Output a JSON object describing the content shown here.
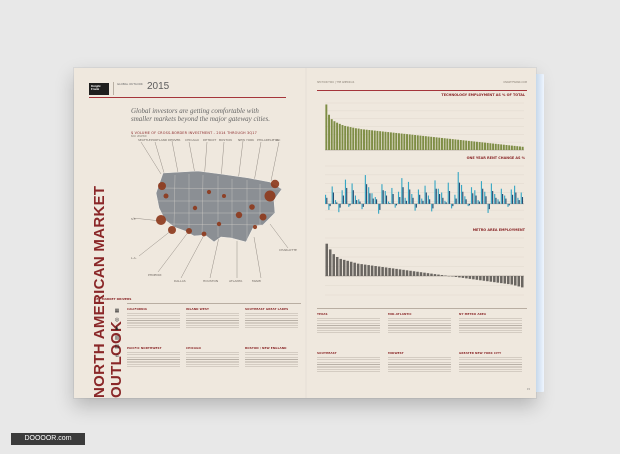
{
  "document": {
    "brand": "Knight Frank",
    "outlook_label": "GLOBAL OUTLOOK",
    "year": "2015",
    "title": "NORTH AMERICAN MARKET OUTLOOK",
    "quote": "Global investors are getting comfortable with smaller markets beyond the major gateway cities.",
    "map_caption": "$ VOLUME OF CROSS-BORDER INVESTMENT - 2014 THROUGH 3Q17",
    "map_sub": "BAR LEGEND",
    "drivers_title": "KEY MARKET DRIVERS",
    "right_header_left": "SECTION TWO | THE AMERICAS",
    "right_header_right": "KNIGHTFRANK.COM",
    "page_left": "14",
    "page_right": "15",
    "watermark": "DOOOOR.com"
  },
  "regions": [
    {
      "name": "CALIFORNIA"
    },
    {
      "name": "INLAND WEST"
    },
    {
      "name": "SOUTHEAST GREAT LAKES"
    },
    {
      "name": "PACIFIC NORTHWEST"
    },
    {
      "name": "CHICAGO"
    },
    {
      "name": "BOSTON / NEW ENGLAND"
    },
    {
      "name": "TEXAS"
    },
    {
      "name": "MID-ATLANTIC"
    },
    {
      "name": "NY METRO AREA"
    },
    {
      "name": "SOUTHEAST"
    },
    {
      "name": "MIDWEST"
    },
    {
      "name": "GREATER NEW YORK CITY"
    }
  ],
  "chart_data": [
    {
      "type": "bar",
      "title": "TECHNOLOGY EMPLOYMENT AS % OF TOTAL",
      "series": [
        {
          "values": [
            15.5,
            12,
            10.5,
            9.8,
            9.3,
            8.9,
            8.5,
            8.2,
            8,
            7.8,
            7.6,
            7.4,
            7.3,
            7.1,
            7,
            6.9,
            6.8,
            6.7,
            6.6,
            6.5,
            6.4,
            6.3,
            6.2,
            6.1,
            6,
            5.9,
            5.8,
            5.7,
            5.6,
            5.5,
            5.4,
            5.3,
            5.2,
            5.1,
            5,
            4.9,
            4.8,
            4.7,
            4.6,
            4.5,
            4.4,
            4.3,
            4.2,
            4.1,
            4,
            3.9,
            3.8,
            3.7,
            3.6,
            3.5,
            3.4,
            3.3,
            3.2,
            3.1,
            3,
            2.9,
            2.8,
            2.7,
            2.6,
            2.5,
            2.4,
            2.3,
            2.2,
            2.1,
            2,
            1.9,
            1.8,
            1.7,
            1.6,
            1.5,
            1.4,
            1.3,
            1.2,
            1.1
          ]
        }
      ],
      "ylim": [
        0,
        16
      ]
    },
    {
      "type": "bar",
      "title": "ONE YEAR RENT CHANGE AS %",
      "series": [
        {
          "values": [
            1.2,
            -0.8,
            2.3,
            0.5,
            -1.1,
            1.8,
            3.2,
            -0.4,
            2.7,
            1.1,
            0.6,
            -0.7,
            3.8,
            2.2,
            1.4,
            0.9,
            -1.3,
            2.6,
            1.7,
            0.3,
            2.1,
            -0.5,
            1.6,
            3.4,
            0.8,
            2.9,
            1.3,
            -0.9,
            1.9,
            0.7,
            2.4,
            1.1,
            -1.0,
            3.1,
            2.0,
            1.5,
            0.4,
            2.8,
            -0.6,
            1.2,
            4.2,
            2.5,
            1.0,
            -0.3,
            2.2,
            1.8,
            0.5,
            3.0,
            1.6,
            -1.2,
            2.7,
            1.3,
            0.6,
            2.0,
            1.1,
            -0.4,
            1.9,
            2.4,
            0.8,
            1.5
          ]
        },
        {
          "values": [
            0.8,
            -0.3,
            1.5,
            0.2,
            -0.5,
            1.1,
            2.1,
            -0.2,
            1.8,
            0.5,
            0.3,
            -0.4,
            2.6,
            1.4,
            0.7,
            0.6,
            -0.8,
            1.8,
            1.1,
            0.1,
            1.3,
            -0.2,
            0.9,
            2.2,
            0.4,
            1.9,
            0.8,
            -0.5,
            1.2,
            0.4,
            1.5,
            0.6,
            -0.6,
            2.0,
            1.3,
            0.8,
            0.2,
            1.7,
            -0.3,
            0.7,
            2.8,
            1.6,
            0.6,
            -0.2,
            1.4,
            1.1,
            0.3,
            2.0,
            1.0,
            -0.7,
            1.7,
            0.8,
            0.3,
            1.3,
            0.7,
            -0.2,
            1.2,
            1.5,
            0.5,
            0.9
          ]
        }
      ],
      "ylim": [
        -2,
        5
      ]
    },
    {
      "type": "bar",
      "title": "METRO AREA EMPLOYMENT",
      "series": [
        {
          "values": [
            3.4,
            2.8,
            2.3,
            2.0,
            1.8,
            1.7,
            1.6,
            1.5,
            1.4,
            1.3,
            1.25,
            1.2,
            1.15,
            1.1,
            1.05,
            1.0,
            0.95,
            0.9,
            0.85,
            0.8,
            0.75,
            0.7,
            0.65,
            0.6,
            0.55,
            0.5,
            0.45,
            0.4,
            0.35,
            0.3,
            0.25,
            0.2,
            0.15,
            0.1,
            0.05,
            0,
            -0.05,
            -0.1,
            -0.15,
            -0.2,
            -0.25,
            -0.3,
            -0.35,
            -0.4,
            -0.45,
            -0.5,
            -0.55,
            -0.6,
            -0.65,
            -0.7,
            -0.75,
            -0.8,
            -0.85,
            -0.9,
            -1.0,
            -1.1,
            -1.2
          ]
        }
      ],
      "ylim": [
        -2,
        4
      ]
    }
  ]
}
